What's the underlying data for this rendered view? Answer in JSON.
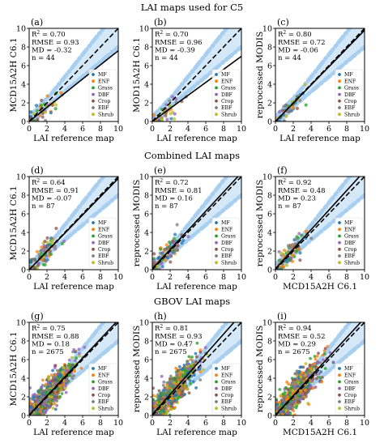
{
  "row_titles": [
    "LAI maps used for C5",
    "Combined LAI maps",
    "GBOV LAI maps"
  ],
  "legend_classes": [
    {
      "label": "MF",
      "color": "#1f77b4"
    },
    {
      "label": "ENF",
      "color": "#ff7f0e"
    },
    {
      "label": "Grass",
      "color": "#2ca02c"
    },
    {
      "label": "DBF",
      "color": "#9467bd"
    },
    {
      "label": "Crop",
      "color": "#8c564b"
    },
    {
      "label": "EBF",
      "color": "#7f7f7f"
    },
    {
      "label": "Shrub",
      "color": "#bcbd22"
    }
  ],
  "chart_data": [
    {
      "id": "a",
      "letter": "(a)",
      "row": 0,
      "col": 0,
      "type": "scatter",
      "xlabel": "LAI reference map",
      "ylabel": "MCD15A2H C6.1",
      "xlim": [
        0,
        10
      ],
      "ylim": [
        0,
        10
      ],
      "xticks": [
        "0",
        "2",
        "4",
        "6",
        "8",
        "10"
      ],
      "yticks": [
        "0",
        "2",
        "4",
        "6",
        "8",
        "10"
      ],
      "stats": {
        "r2_label": "R",
        "r2_sup": "2",
        "r2_value": " = 0.70",
        "rmse": "RMSE = 0.93",
        "md": "MD = -0.32",
        "n": "n = 44"
      },
      "fit": {
        "slope": 0.76,
        "intercept": 0.0
      },
      "n": 44,
      "legend": "lower-right"
    },
    {
      "id": "b",
      "letter": "(b)",
      "row": 0,
      "col": 1,
      "type": "scatter",
      "xlabel": "LAI reference map",
      "ylabel": "MOD15A2H C6.1",
      "xlim": [
        0,
        10
      ],
      "ylim": [
        0,
        10
      ],
      "xticks": [
        "0",
        "2",
        "4",
        "6",
        "8",
        "10"
      ],
      "yticks": [
        "0",
        "2",
        "4",
        "6",
        "8",
        "10"
      ],
      "stats": {
        "r2_label": "R",
        "r2_sup": "2",
        "r2_value": " = 0.70",
        "rmse": "RMSE = 0.96",
        "md": "MD = -0.39",
        "n": "n = 44"
      },
      "fit": {
        "slope": 0.7,
        "intercept": 0.0
      },
      "n": 44,
      "legend": "lower-right"
    },
    {
      "id": "c",
      "letter": "(c)",
      "row": 0,
      "col": 2,
      "type": "scatter",
      "xlabel": "LAI reference map",
      "ylabel": "reprocessed MODIS",
      "xlim": [
        0,
        10
      ],
      "ylim": [
        0,
        10
      ],
      "xticks": [
        "0",
        "2",
        "4",
        "6",
        "8",
        "10"
      ],
      "yticks": [
        "0",
        "2",
        "4",
        "6",
        "8",
        "10"
      ],
      "stats": {
        "r2_label": "R",
        "r2_sup": "2",
        "r2_value": " = 0.80",
        "rmse": "RMSE = 0.72",
        "md": "MD = -0.06",
        "n": "n = 44"
      },
      "fit": {
        "slope": 0.98,
        "intercept": 0.0
      },
      "n": 44,
      "legend": "lower-right"
    },
    {
      "id": "d",
      "letter": "(d)",
      "row": 1,
      "col": 0,
      "type": "scatter",
      "xlabel": "LAI reference map",
      "ylabel": "MCD15A2H C6.1",
      "xlim": [
        0,
        10
      ],
      "ylim": [
        0,
        10
      ],
      "xticks": [
        "0",
        "2",
        "4",
        "6",
        "8",
        "10"
      ],
      "yticks": [
        "0",
        "2",
        "4",
        "6",
        "8",
        "10"
      ],
      "stats": {
        "r2_label": "R",
        "r2_sup": "2",
        "r2_value": " = 0.64",
        "rmse": "RMSE = 0.91",
        "md": "MD = -0.07",
        "n": "n = 87"
      },
      "fit": {
        "slope": 0.98,
        "intercept": 0.0
      },
      "n": 87,
      "legend": "lower-right"
    },
    {
      "id": "e",
      "letter": "(e)",
      "row": 1,
      "col": 1,
      "type": "scatter",
      "xlabel": "LAI reference map",
      "ylabel": "reprocessed MODIS",
      "xlim": [
        0,
        10
      ],
      "ylim": [
        0,
        10
      ],
      "xticks": [
        "0",
        "2",
        "4",
        "6",
        "8",
        "10"
      ],
      "yticks": [
        "0",
        "2",
        "4",
        "6",
        "8",
        "10"
      ],
      "stats": {
        "r2_label": "R",
        "r2_sup": "2",
        "r2_value": " = 0.72",
        "rmse": "RMSE = 0.81",
        "md": "MD = 0.16",
        "n": "n = 87"
      },
      "fit": {
        "slope": 1.03,
        "intercept": 0.1
      },
      "n": 87,
      "legend": "lower-right"
    },
    {
      "id": "f",
      "letter": "(f)",
      "row": 1,
      "col": 2,
      "type": "scatter",
      "xlabel": "MCD15A2H C6.1",
      "ylabel": "reprocessed MODIS",
      "xlim": [
        0,
        10
      ],
      "ylim": [
        0,
        10
      ],
      "xticks": [
        "0",
        "2",
        "4",
        "6",
        "8",
        "10"
      ],
      "yticks": [
        "0",
        "2",
        "4",
        "6",
        "8",
        "10"
      ],
      "stats": {
        "r2_label": "R",
        "r2_sup": "2",
        "r2_value": " = 0.92",
        "rmse": "RMSE = 0.48",
        "md": "MD = 0.23",
        "n": "n = 87"
      },
      "fit": {
        "slope": 1.05,
        "intercept": 0.1
      },
      "n": 87,
      "legend": "lower-right"
    },
    {
      "id": "g",
      "letter": "(g)",
      "row": 2,
      "col": 0,
      "type": "scatter",
      "xlabel": "LAI reference map",
      "ylabel": "MCD15A2H C6.1",
      "xlim": [
        0,
        10
      ],
      "ylim": [
        0,
        10
      ],
      "xticks": [
        "0",
        "2",
        "4",
        "6",
        "8",
        "10"
      ],
      "yticks": [
        "0",
        "2",
        "4",
        "6",
        "8",
        "10"
      ],
      "stats": {
        "r2_label": "R",
        "r2_sup": "2",
        "r2_value": " = 0.75",
        "rmse": "RMSE = 0.88",
        "md": "MD = 0.18",
        "n": "n = 2675"
      },
      "fit": {
        "slope": 1.02,
        "intercept": 0.05
      },
      "n": 2675,
      "legend": "lower-right"
    },
    {
      "id": "h",
      "letter": "(h)",
      "row": 2,
      "col": 1,
      "type": "scatter",
      "xlabel": "LAI reference map",
      "ylabel": "reprocessed MODIS",
      "xlim": [
        0,
        10
      ],
      "ylim": [
        0,
        10
      ],
      "xticks": [
        "0",
        "2",
        "4",
        "6",
        "8",
        "10"
      ],
      "yticks": [
        "0",
        "2",
        "4",
        "6",
        "8",
        "10"
      ],
      "stats": {
        "r2_label": "R",
        "r2_sup": "2",
        "r2_value": " = 0.81",
        "rmse": "RMSE = 0.93",
        "md": "MD = 0.47",
        "n": "n = 2675"
      },
      "fit": {
        "slope": 1.08,
        "intercept": 0.1
      },
      "n": 2675,
      "legend": "lower-right"
    },
    {
      "id": "i",
      "letter": "(i)",
      "row": 2,
      "col": 2,
      "type": "scatter",
      "xlabel": "MCD15A2H C6.1",
      "ylabel": "reprocessed MODIS",
      "xlim": [
        0,
        10
      ],
      "ylim": [
        0,
        10
      ],
      "xticks": [
        "0",
        "2",
        "4",
        "6",
        "8",
        "10"
      ],
      "yticks": [
        "0",
        "2",
        "4",
        "6",
        "8",
        "10"
      ],
      "stats": {
        "r2_label": "R",
        "r2_sup": "2",
        "r2_value": " = 0.94",
        "rmse": "RMSE = 0.52",
        "md": "MD = 0.29",
        "n": "n = 2675"
      },
      "fit": {
        "slope": 1.04,
        "intercept": 0.05
      },
      "n": 2675,
      "legend": "lower-right"
    }
  ]
}
